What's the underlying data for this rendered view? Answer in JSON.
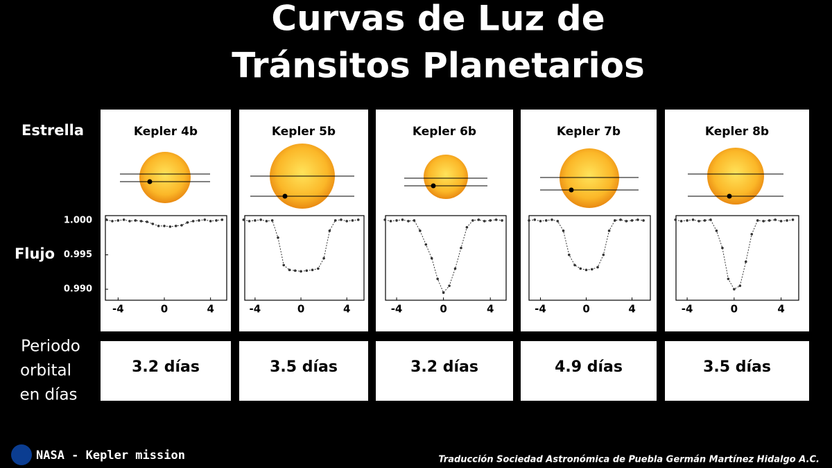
{
  "title": [
    "Curvas de Luz de",
    "Tránsitos Planetarios"
  ],
  "row_labels": {
    "star": "Estrella",
    "flux": "Flujo",
    "period": [
      "Periodo",
      "orbital",
      "en días"
    ]
  },
  "footer": {
    "source": "NASA - Kepler mission",
    "credit": "Traducción Sociedad Astronómica de Puebla Germán Martínez Hidalgo A.C."
  },
  "chart_data": [
    {
      "type": "scatter",
      "title": "Kepler 4b",
      "period": "3.2 días",
      "color": "#333333",
      "x": [
        -5,
        -4.5,
        -4,
        -3.5,
        -3,
        -2.5,
        -2,
        -1.5,
        -1,
        -0.5,
        0,
        0.5,
        1,
        1.5,
        2,
        2.5,
        3,
        3.5,
        4,
        4.5,
        5
      ],
      "values": [
        1.0001,
        0.9999,
        1.0,
        1.0001,
        0.9999,
        1.0,
        0.9999,
        0.9998,
        0.9995,
        0.9992,
        0.9992,
        0.9991,
        0.9992,
        0.9993,
        0.9997,
        0.9999,
        1.0,
        1.0001,
        0.9999,
        1.0,
        1.0001
      ],
      "xlim": [
        -5.1,
        5.4
      ],
      "xticks": [
        -4,
        0,
        4
      ],
      "ylim": [
        0.9884,
        1.0007
      ],
      "yticks": [
        {
          "value": 1,
          "label": "1.000"
        },
        {
          "value": 0.995,
          "label": "0.995"
        },
        {
          "value": 0.99,
          "label": "0.990"
        }
      ]
    },
    {
      "type": "scatter",
      "title": "Kepler 5b",
      "period": "3.5 días",
      "color": "#333333",
      "x": [
        -5,
        -4.5,
        -4,
        -3.5,
        -3,
        -2.5,
        -2,
        -1.5,
        -1,
        -0.5,
        0,
        0.5,
        1,
        1.5,
        2,
        2.5,
        3,
        3.5,
        4,
        4.5,
        5
      ],
      "values": [
        1.0001,
        0.9999,
        1.0,
        1.0001,
        0.9999,
        1.0,
        0.9975,
        0.9935,
        0.9928,
        0.9927,
        0.9926,
        0.9927,
        0.9928,
        0.993,
        0.9945,
        0.9985,
        1.0,
        1.0001,
        0.9999,
        1.0,
        1.0001
      ],
      "xlim": [
        -4.9,
        5.5
      ],
      "xticks": [
        -4,
        0,
        4
      ],
      "ylim": [
        0.9884,
        1.0007
      ]
    },
    {
      "type": "scatter",
      "title": "Kepler 6b",
      "period": "3.2 días",
      "color": "#333333",
      "x": [
        -5,
        -4.5,
        -4,
        -3.5,
        -3,
        -2.5,
        -2,
        -1.5,
        -1,
        -0.5,
        0,
        0.5,
        1,
        1.5,
        2,
        2.5,
        3,
        3.5,
        4,
        4.5,
        5
      ],
      "values": [
        1.0001,
        0.9999,
        1.0,
        1.0001,
        0.9999,
        1.0,
        0.9985,
        0.9965,
        0.9945,
        0.9915,
        0.9895,
        0.9905,
        0.993,
        0.996,
        0.999,
        1.0,
        1.0001,
        0.9999,
        1.0,
        1.0001,
        1.0
      ],
      "xlim": [
        -4.95,
        5.35
      ],
      "xticks": [
        -4,
        0,
        4
      ],
      "ylim": [
        0.9884,
        1.0007
      ]
    },
    {
      "type": "scatter",
      "title": "Kepler 7b",
      "period": "4.9 días",
      "color": "#333333",
      "x": [
        -5,
        -4.5,
        -4,
        -3.5,
        -3,
        -2.5,
        -2,
        -1.5,
        -1,
        -0.5,
        0,
        0.5,
        1,
        1.5,
        2,
        2.5,
        3,
        3.5,
        4,
        4.5,
        5
      ],
      "values": [
        1.0,
        1.0001,
        0.9999,
        1.0,
        1.0001,
        0.9999,
        0.9985,
        0.995,
        0.9935,
        0.993,
        0.9928,
        0.9929,
        0.9932,
        0.995,
        0.9985,
        1.0,
        1.0001,
        0.9999,
        1.0,
        1.0001,
        1.0
      ],
      "xlim": [
        -5.0,
        5.6
      ],
      "xticks": [
        -4,
        0,
        4
      ],
      "ylim": [
        0.9884,
        1.0007
      ]
    },
    {
      "type": "scatter",
      "title": "Kepler 8b",
      "period": "3.5 días",
      "color": "#333333",
      "x": [
        -5,
        -4.5,
        -4,
        -3.5,
        -3,
        -2.5,
        -2,
        -1.5,
        -1,
        -0.5,
        0,
        0.5,
        1,
        1.5,
        2,
        2.5,
        3,
        3.5,
        4,
        4.5,
        5
      ],
      "values": [
        1.0001,
        0.9999,
        1.0,
        1.0001,
        0.9999,
        1.0,
        1.0001,
        0.9985,
        0.996,
        0.9915,
        0.99,
        0.9905,
        0.994,
        0.998,
        1.0,
        0.9999,
        1.0,
        1.0001,
        0.9999,
        1.0,
        1.0001
      ],
      "xlim": [
        -4.95,
        5.5
      ],
      "xticks": [
        -4,
        0,
        4
      ],
      "ylim": [
        0.9884,
        1.0007
      ]
    }
  ]
}
